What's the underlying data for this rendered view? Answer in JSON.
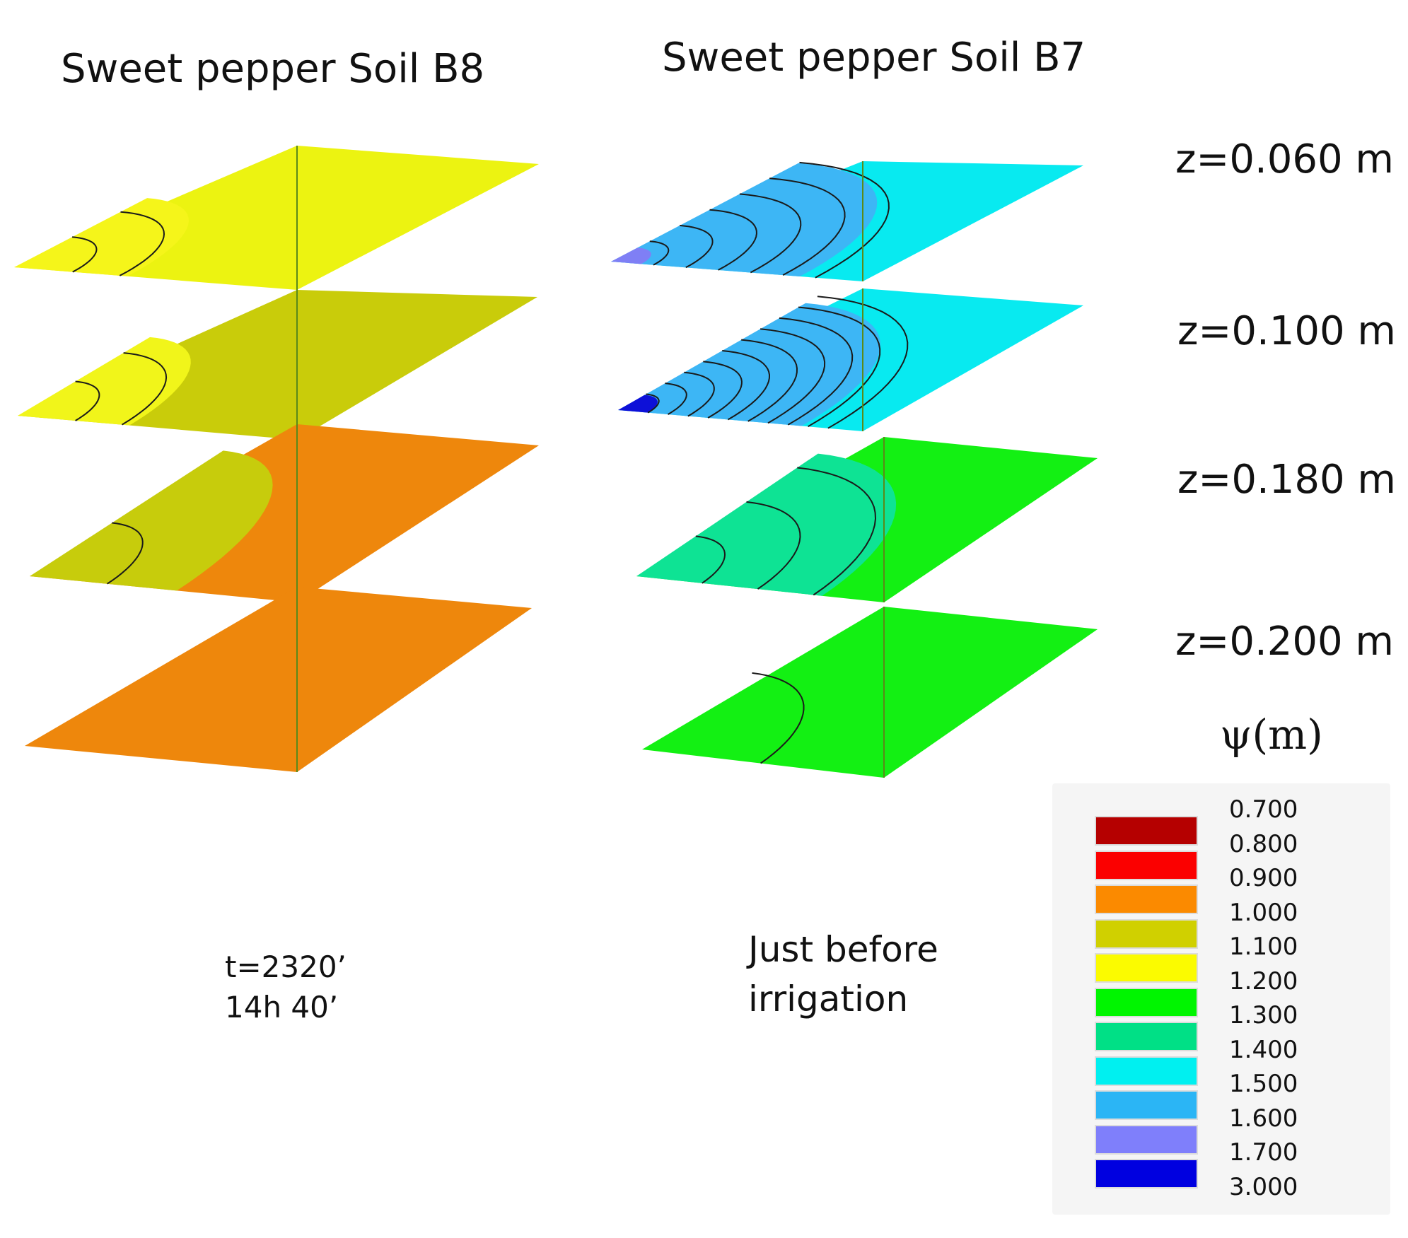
{
  "panels": [
    {
      "title": "Sweet pepper  Soil B8",
      "note_lines": [
        "t=2320’",
        "14h 40’"
      ],
      "layers": [
        {
          "depth": "z=0.060 m",
          "base_color": "#ecf311",
          "patch_color": "#f5f51a",
          "contour_count": 2
        },
        {
          "depth": "z=0.100 m",
          "base_color": "#c9cc0a",
          "patch_color": "#f1f51a",
          "contour_count": 2
        },
        {
          "depth": "z=0.180 m",
          "base_color": "#ee870c",
          "patch_color": "#c7cc0c",
          "contour_count": 1
        },
        {
          "depth": "z=0.200 m",
          "base_color": "#ee870c",
          "patch_color": "#ee870c",
          "contour_count": 0
        }
      ]
    },
    {
      "title": "Sweet pepper  Soil B7",
      "note_lines": [
        "Just before",
        "irrigation"
      ],
      "layers": [
        {
          "depth": "z=0.060 m",
          "base_color": "#08eaf0",
          "patch_color": "#3db6f5",
          "accent_color": "#7f7ff5",
          "contour_count": 6
        },
        {
          "depth": "z=0.100 m",
          "base_color": "#08eaf0",
          "patch_color": "#3db6f5",
          "accent_color": "#0d10d8",
          "contour_count": 10
        },
        {
          "depth": "z=0.180 m",
          "base_color": "#13f013",
          "patch_color": "#0ee394",
          "contour_count": 3
        },
        {
          "depth": "z=0.200 m",
          "base_color": "#13f013",
          "patch_color": "#13f013",
          "contour_count": 1
        }
      ]
    }
  ],
  "depth_labels": [
    "z=0.060 m",
    "z=0.100 m",
    "z=0.180 m",
    "z=0.200 m"
  ],
  "legend": {
    "title": "ψ(m)",
    "items": [
      {
        "value": "0.700",
        "color": "#b50000"
      },
      {
        "value": "0.800",
        "color": "#fb0000"
      },
      {
        "value": "0.900",
        "color": "#fb8a00"
      },
      {
        "value": "1.000",
        "color": "#d0d000"
      },
      {
        "value": "1.100",
        "color": "#fbfb00"
      },
      {
        "value": "1.200",
        "color": "#00f500"
      },
      {
        "value": "1.300",
        "color": "#00e086"
      },
      {
        "value": "1.400",
        "color": "#00f0f0"
      },
      {
        "value": "1.500",
        "color": "#2bb5f5"
      },
      {
        "value": "1.600",
        "color": "#7f7ffb"
      },
      {
        "value": "1.700",
        "color": "#0000e0"
      }
    ],
    "boundary_labels": [
      "0.700",
      "0.800",
      "0.900",
      "1.000",
      "1.100",
      "1.200",
      "1.300",
      "1.400",
      "1.500",
      "1.600",
      "1.700",
      "3.000"
    ]
  }
}
